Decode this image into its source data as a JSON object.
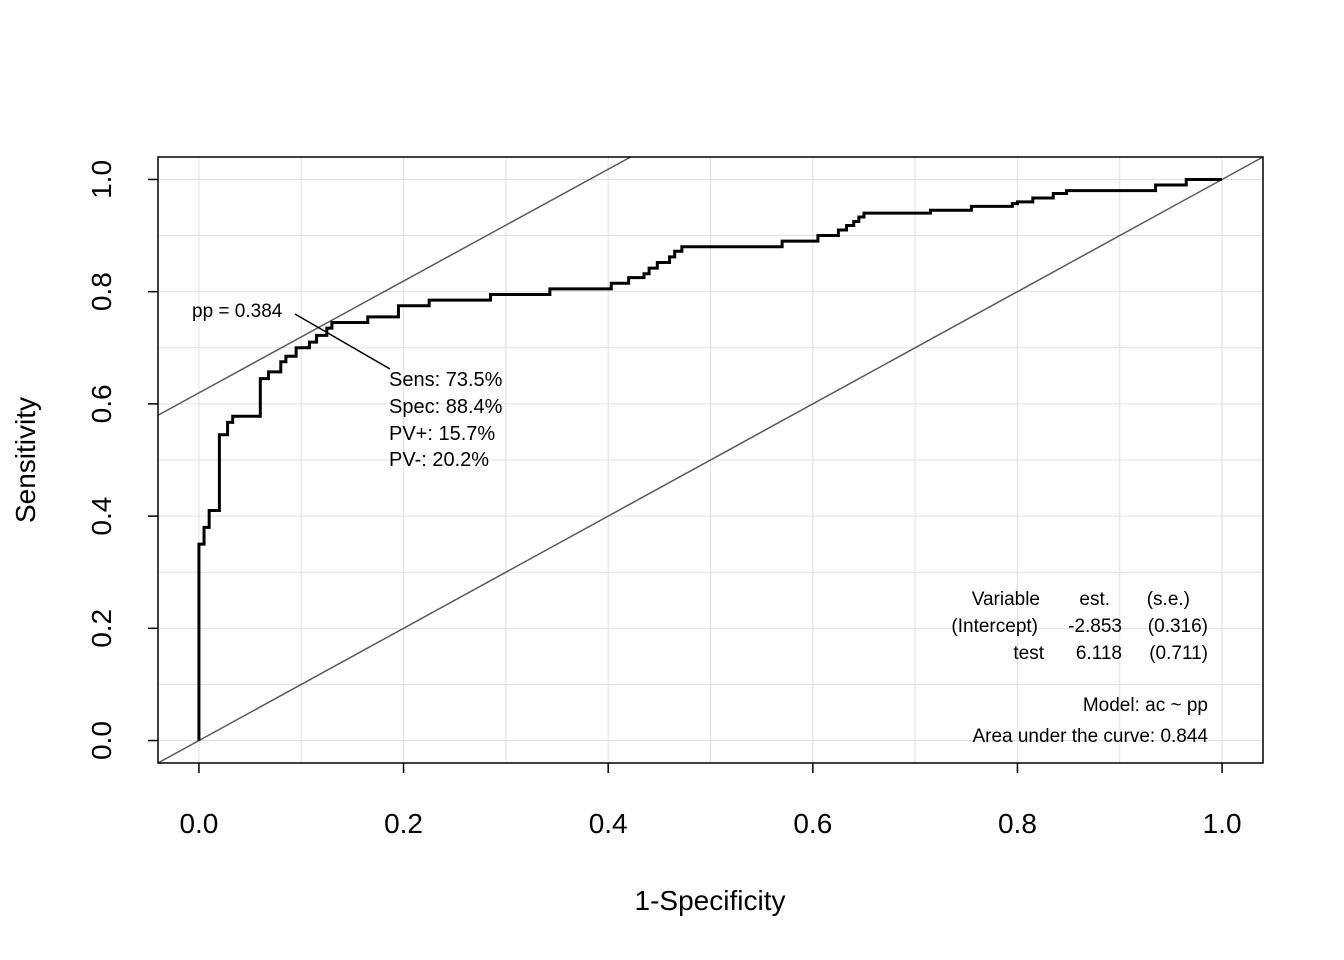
{
  "chart_data": {
    "type": "line",
    "xlabel": "1-Specificity",
    "ylabel": "Sensitivity",
    "xlim": [
      -0.04,
      1.04
    ],
    "ylim": [
      -0.04,
      1.04
    ],
    "x_ticks": [
      "0.0",
      "0.2",
      "0.4",
      "0.6",
      "0.8",
      "1.0"
    ],
    "y_ticks": [
      "0.0",
      "0.2",
      "0.4",
      "0.6",
      "0.8",
      "1.0"
    ],
    "grid": true,
    "colors": {
      "roc": "#000000",
      "reference": "#595959",
      "grid": "#e0e0e0",
      "frame": "#000000"
    },
    "series": [
      {
        "x": [
          0.0,
          0.0,
          0.0,
          0.005,
          0.005,
          0.01,
          0.01,
          0.02,
          0.02,
          0.028,
          0.028,
          0.033,
          0.033,
          0.06,
          0.06,
          0.068,
          0.068,
          0.08,
          0.08,
          0.085,
          0.085,
          0.095,
          0.095,
          0.108,
          0.108,
          0.115,
          0.115,
          0.125,
          0.125,
          0.13,
          0.13,
          0.165,
          0.165,
          0.195,
          0.195,
          0.225,
          0.225,
          0.285,
          0.285,
          0.343,
          0.343,
          0.403,
          0.403,
          0.42,
          0.42,
          0.435,
          0.435,
          0.44,
          0.44,
          0.448,
          0.448,
          0.46,
          0.46,
          0.465,
          0.465,
          0.472,
          0.472,
          0.57,
          0.57,
          0.605,
          0.605,
          0.625,
          0.625,
          0.633,
          0.633,
          0.64,
          0.64,
          0.645,
          0.645,
          0.65,
          0.65,
          0.715,
          0.715,
          0.755,
          0.755,
          0.795,
          0.795,
          0.8,
          0.8,
          0.815,
          0.815,
          0.835,
          0.835,
          0.848,
          0.848,
          0.935,
          0.935,
          0.965,
          0.965,
          1.0
        ],
        "y": [
          0.0,
          0.35,
          0.35,
          0.35,
          0.38,
          0.38,
          0.41,
          0.41,
          0.545,
          0.545,
          0.567,
          0.567,
          0.578,
          0.578,
          0.645,
          0.645,
          0.657,
          0.657,
          0.675,
          0.675,
          0.685,
          0.685,
          0.7,
          0.7,
          0.71,
          0.71,
          0.722,
          0.722,
          0.735,
          0.735,
          0.745,
          0.745,
          0.755,
          0.755,
          0.775,
          0.775,
          0.785,
          0.785,
          0.795,
          0.795,
          0.805,
          0.805,
          0.815,
          0.815,
          0.825,
          0.825,
          0.832,
          0.832,
          0.842,
          0.842,
          0.852,
          0.852,
          0.862,
          0.862,
          0.872,
          0.872,
          0.88,
          0.88,
          0.89,
          0.89,
          0.9,
          0.9,
          0.91,
          0.91,
          0.918,
          0.918,
          0.925,
          0.925,
          0.933,
          0.933,
          0.94,
          0.94,
          0.945,
          0.945,
          0.952,
          0.952,
          0.957,
          0.957,
          0.96,
          0.96,
          0.967,
          0.967,
          0.975,
          0.975,
          0.98,
          0.98,
          0.99,
          0.99,
          1.0,
          1.0
        ]
      }
    ],
    "reference_lines": [
      {
        "x1": -0.04,
        "y1": -0.04,
        "x2": 1.04,
        "y2": 1.04
      },
      {
        "x1": -0.04,
        "y1": 0.5798,
        "x2": 0.4219,
        "y2": 1.04
      }
    ],
    "optimal_point": {
      "x": 0.116,
      "y": 0.735,
      "label": "pp = 0.384",
      "sens": "Sens: 73.5%",
      "spec": "Spec: 88.4%",
      "ppv": "PV+: 15.7%",
      "npv": "PV-: 20.2%"
    },
    "coef_table": {
      "headers": [
        "Variable",
        "est.",
        "(s.e.)"
      ],
      "rows": [
        [
          "(Intercept)",
          "-2.853",
          "(0.316)"
        ],
        [
          "test",
          "6.118",
          "(0.711)"
        ]
      ]
    },
    "model": "Model:  ac ~ pp",
    "auc": "Area under the curve: 0.844"
  }
}
